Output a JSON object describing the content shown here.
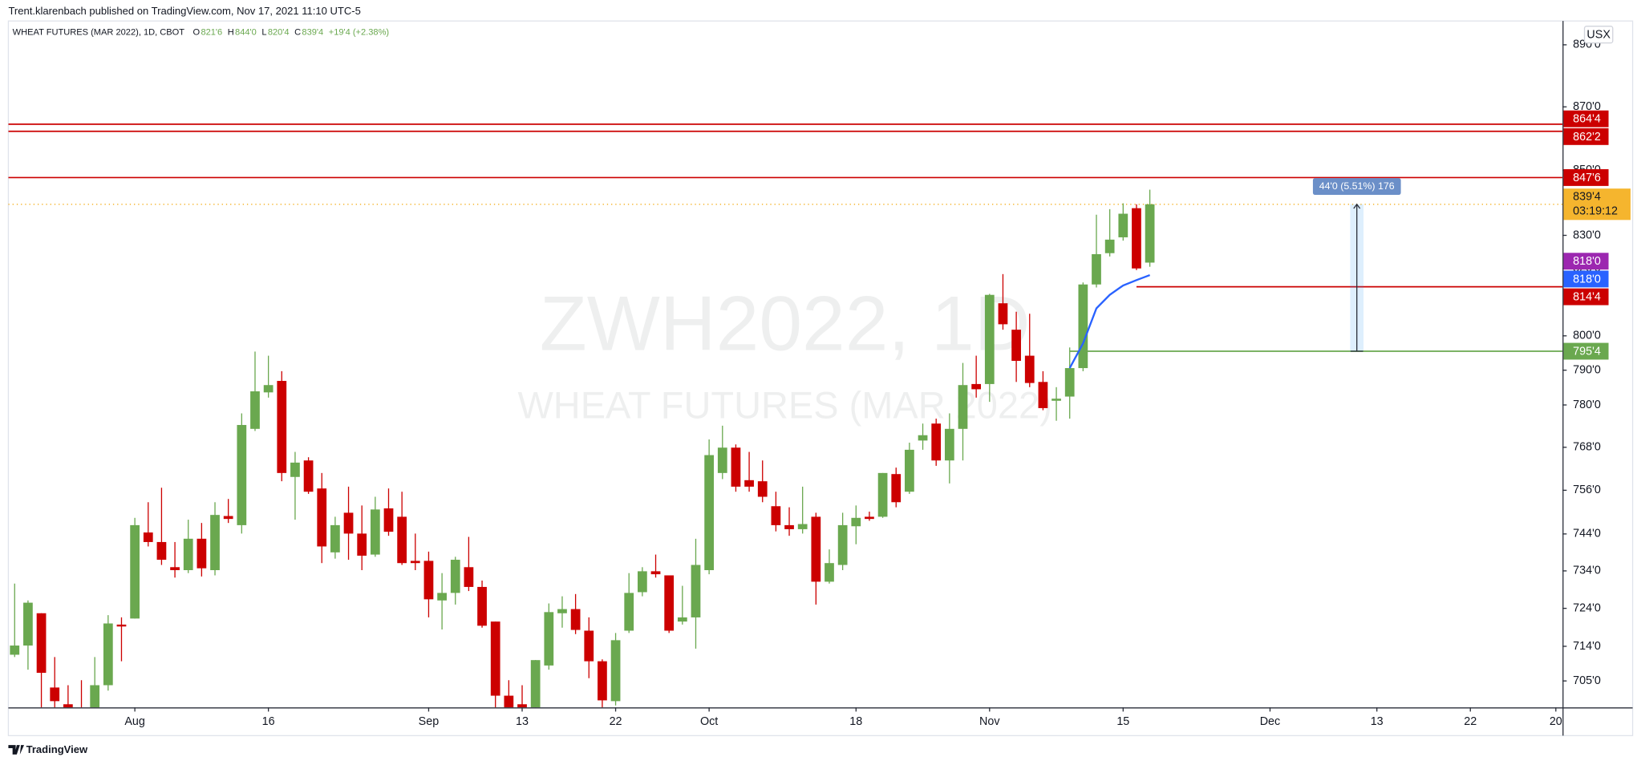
{
  "chart_data": {
    "type": "candlestick",
    "header": "Trent.klarenbach published on TradingView.com, Nov 17, 2021 11:10 UTC-5",
    "title": "WHEAT FUTURES (MAR 2022), 1D, CBOT",
    "legend": [
      {
        "key": "O",
        "text": "821'6"
      },
      {
        "key": "H",
        "text": "844'0"
      },
      {
        "key": "L",
        "text": "820'4"
      },
      {
        "key": "C",
        "text": "839'4"
      }
    ],
    "change_text": "+19'4 (+2.38%)",
    "watermark": "ZWH2022, 1D",
    "watermark_subtitle": "WHEAT FUTURES (MAR 2022)",
    "currency": "USX",
    "footer": "TradingView",
    "up_color": "#6aa84f",
    "down_color": "#cc0000",
    "log_scale": true,
    "grid": false,
    "open": [
      711.8,
      714.2,
      722.7,
      703.3,
      699.0,
      697.2,
      695.8,
      703.9,
      719.7,
      721.3,
      744.4,
      741.8,
      735.0,
      734.2,
      742.7,
      734.2,
      748.9,
      746.4,
      773.2,
      783.6,
      786.9,
      759.7,
      764.3,
      756.5,
      739.0,
      749.8,
      744.1,
      738.4,
      751.0,
      748.7,
      736.7,
      736.7,
      726.1,
      728.1,
      735.0,
      729.7,
      720.5,
      701.2,
      699.0,
      695.8,
      709.0,
      722.7,
      723.8,
      718.1,
      710.1,
      699.8,
      718.1,
      728.3,
      733.9,
      732.8,
      720.5,
      721.6,
      734.2,
      760.8,
      767.9,
      758.8,
      758.5,
      751.6,
      746.4,
      745.3,
      748.7,
      731.1,
      735.6,
      746.1,
      748.7,
      748.7,
      760.5,
      755.6,
      769.9,
      774.7,
      764.3,
      773.2,
      786.0,
      786.0,
      809.6,
      801.8,
      794.2,
      786.6,
      781.2,
      782.4,
      790.6,
      815.2,
      824.6,
      829.4,
      838.3,
      821.75
    ],
    "high": [
      730.6,
      726.1,
      722.7,
      711.2,
      703.9,
      705.2,
      711.2,
      722.2,
      721.6,
      748.4,
      752.7,
      756.7,
      741.8,
      747.9,
      747.0,
      752.7,
      753.6,
      777.6,
      795.4,
      794.2,
      789.7,
      766.7,
      765.2,
      760.8,
      748.7,
      757.0,
      751.8,
      754.2,
      756.5,
      755.6,
      744.1,
      739.2,
      733.4,
      737.8,
      743.2,
      731.4,
      720.5,
      705.2,
      703.9,
      710.4,
      725.3,
      727.2,
      727.8,
      721.6,
      710.6,
      717.5,
      733.4,
      735.0,
      738.4,
      732.8,
      730.0,
      742.7,
      770.2,
      774.1,
      768.8,
      766.7,
      764.3,
      755.6,
      751.3,
      757.0,
      749.8,
      739.8,
      749.8,
      751.8,
      750.1,
      760.8,
      762.3,
      769.3,
      774.7,
      776.1,
      777.6,
      792.1,
      794.2,
      812.4,
      818.3,
      807.1,
      806.5,
      789.7,
      785.1,
      796.6,
      815.8,
      836.3,
      838.0,
      839.8,
      839.5,
      844
    ],
    "low": [
      711.2,
      707.9,
      698.2,
      696.5,
      691.8,
      689.1,
      694.5,
      702.5,
      710.1,
      721.3,
      740.6,
      735.6,
      732.2,
      733.4,
      732.5,
      732.8,
      747.0,
      744.1,
      772.6,
      782.1,
      758.5,
      747.9,
      755.0,
      736.1,
      737.3,
      737.0,
      734.2,
      737.8,
      743.5,
      735.6,
      734.2,
      721.6,
      718.4,
      725.0,
      728.6,
      718.9,
      698.2,
      694.5,
      691.8,
      694.5,
      707.9,
      718.9,
      717.2,
      705.7,
      698.2,
      698.7,
      717.5,
      727.2,
      732.2,
      717.5,
      719.7,
      713.4,
      733.1,
      759.1,
      755.6,
      755.6,
      752.7,
      744.7,
      743.5,
      744.1,
      725.0,
      730.6,
      734.2,
      741.2,
      747.6,
      748.4,
      751.3,
      755.0,
      767.3,
      762.8,
      757.9,
      764.3,
      782.1,
      780.9,
      801.8,
      786.6,
      785.1,
      778.5,
      775.5,
      776.1,
      789.7,
      814.3,
      823.6,
      828.4,
      819.5,
      820.5
    ],
    "close": [
      714.2,
      725.5,
      707.1,
      699.8,
      694.5,
      691.8,
      703.9,
      720.0,
      719.2,
      746.4,
      741.8,
      737.0,
      734.2,
      742.7,
      734.7,
      749.2,
      748.1,
      774.3,
      783.9,
      785.7,
      760.8,
      763.7,
      755.6,
      740.6,
      746.4,
      744.1,
      738.1,
      750.7,
      744.6,
      736.1,
      736.1,
      726.4,
      728.1,
      737.0,
      729.7,
      719.4,
      701.2,
      697.2,
      694.5,
      710.4,
      723.0,
      723.8,
      718.3,
      710.1,
      700.0,
      715.6,
      728.1,
      733.9,
      733.1,
      718.1,
      721.6,
      735.6,
      765.8,
      767.9,
      757.0,
      757.0,
      754.2,
      746.4,
      745.3,
      746.7,
      731.1,
      736.1,
      746.4,
      748.4,
      748.1,
      760.8,
      752.7,
      767.3,
      771.4,
      764.3,
      773.2,
      785.7,
      784.5,
      812.1,
      803.4,
      792.7,
      786.3,
      779.1,
      781.8,
      790.6,
      815.2,
      824.3,
      828.7,
      836.6,
      820.0,
      839.5
    ],
    "xlim": [
      -0.47,
      115.9
    ],
    "xticks": [
      {
        "value": 9,
        "label": "Aug"
      },
      {
        "value": 19,
        "label": "16"
      },
      {
        "value": 31,
        "label": "Sep"
      },
      {
        "value": 38,
        "label": "13"
      },
      {
        "value": 45,
        "label": "22"
      },
      {
        "value": 52,
        "label": "Oct"
      },
      {
        "value": 63,
        "label": "18"
      },
      {
        "value": 73,
        "label": "Nov"
      },
      {
        "value": 83,
        "label": "15"
      },
      {
        "value": 94,
        "label": "Dec"
      },
      {
        "value": 102,
        "label": "13"
      },
      {
        "value": 109,
        "label": "22"
      },
      {
        "value": 115.4,
        "label": "20"
      }
    ],
    "ylim": [
      698.2,
      897.8
    ],
    "yticks": [
      {
        "value": 705,
        "label": "705'0"
      },
      {
        "value": 714,
        "label": "714'0"
      },
      {
        "value": 724,
        "label": "724'0"
      },
      {
        "value": 734,
        "label": "734'0"
      },
      {
        "value": 744,
        "label": "744'0"
      },
      {
        "value": 756,
        "label": "756'0"
      },
      {
        "value": 768,
        "label": "768'0"
      },
      {
        "value": 780,
        "label": "780'0"
      },
      {
        "value": 790,
        "label": "790'0"
      },
      {
        "value": 800,
        "label": "800'0"
      },
      {
        "value": 820,
        "label": "820'0"
      },
      {
        "value": 830,
        "label": "830'0"
      },
      {
        "value": 850,
        "label": "850'0"
      },
      {
        "value": 870,
        "label": "870'0"
      },
      {
        "value": 890,
        "label": "890'0"
      }
    ],
    "horizontal_lines": [
      {
        "value": 864.5,
        "label": "864'4",
        "color": "#cc0000"
      },
      {
        "value": 862.25,
        "label": "862'2",
        "color": "#cc0000"
      },
      {
        "value": 847.75,
        "label": "847'6",
        "color": "#cc0000"
      },
      {
        "value": 814.5,
        "label": "814'4",
        "color": "#cc0000",
        "start": 84
      },
      {
        "value": 795.5,
        "label": "795'4",
        "color": "#6aa84f",
        "start": 79
      }
    ],
    "price_markers": [
      {
        "value": 818,
        "label": "818'0",
        "color": "#9c27b0"
      }
    ],
    "indicator": {
      "color": "#2962ff",
      "x": [
        79,
        80,
        81,
        82,
        83,
        84,
        85
      ],
      "values": [
        790.6,
        797.8,
        808.1,
        812.1,
        814.9,
        816.5,
        818.0
      ],
      "label": "818'0"
    },
    "current_price": {
      "value": 839.5,
      "label": "839'4",
      "countdown": "03:19:12",
      "color": "#f5b52e"
    },
    "measure": {
      "x": 100.5,
      "from": 839.5,
      "to": 795.5,
      "label": "44'0 (5.51%) 176",
      "color": "#2196f3"
    }
  }
}
